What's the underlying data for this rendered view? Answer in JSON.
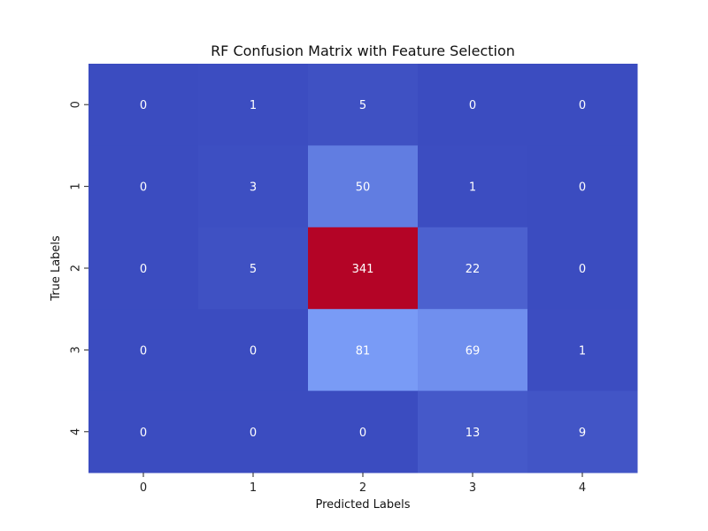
{
  "chart_data": {
    "type": "heatmap",
    "title": "RF Confusion Matrix with Feature Selection",
    "xlabel": "Predicted Labels",
    "ylabel": "True Labels",
    "x_categories": [
      "0",
      "1",
      "2",
      "3",
      "4"
    ],
    "y_categories": [
      "0",
      "1",
      "2",
      "3",
      "4"
    ],
    "values": [
      [
        0,
        1,
        5,
        0,
        0
      ],
      [
        0,
        3,
        50,
        1,
        0
      ],
      [
        0,
        5,
        341,
        22,
        0
      ],
      [
        0,
        0,
        81,
        69,
        1
      ],
      [
        0,
        0,
        0,
        13,
        9
      ]
    ],
    "colormap": "coolwarm",
    "vmin": 0,
    "vmax": 341,
    "colorbar": false
  }
}
